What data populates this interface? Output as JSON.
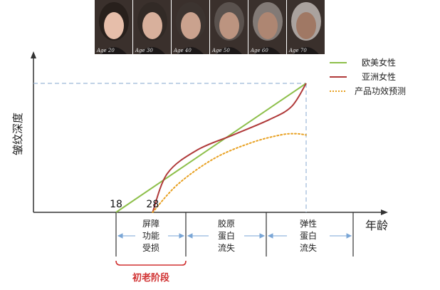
{
  "chart_data": {
    "type": "line",
    "ylabel": "皱纹深度",
    "xlabel": "年龄",
    "x_ticks": [
      18,
      28
    ],
    "xlim": [
      0,
      100
    ],
    "ylim": [
      0,
      100
    ],
    "legend_position": "top-right",
    "series": [
      {
        "name": "欧美女性",
        "color": "#8dbf4a",
        "style": "solid",
        "points": [
          [
            18,
            0
          ],
          [
            70,
            100
          ]
        ]
      },
      {
        "name": "亚洲女性",
        "color": "#b03a3a",
        "style": "solid",
        "points": [
          [
            28,
            0
          ],
          [
            32,
            30
          ],
          [
            40,
            48
          ],
          [
            50,
            60
          ],
          [
            60,
            72
          ],
          [
            66,
            82
          ],
          [
            70,
            100
          ]
        ]
      },
      {
        "name": "产品功效预测",
        "color": "#e8a020",
        "style": "dotted",
        "points": [
          [
            28,
            0
          ],
          [
            35,
            22
          ],
          [
            45,
            42
          ],
          [
            55,
            54
          ],
          [
            63,
            60
          ],
          [
            67,
            61
          ],
          [
            70,
            60
          ]
        ]
      }
    ],
    "stages": [
      {
        "label_lines": [
          "屏障",
          "功能",
          "受损"
        ]
      },
      {
        "label_lines": [
          "胶原",
          "蛋白",
          "流失"
        ]
      },
      {
        "label_lines": [
          "弹性",
          "蛋白",
          "流失"
        ]
      }
    ],
    "annotation": "初老阶段",
    "face_labels": [
      "Age 20",
      "Age 30",
      "Age 40",
      "Age 50",
      "Age 60",
      "Age 70"
    ]
  }
}
